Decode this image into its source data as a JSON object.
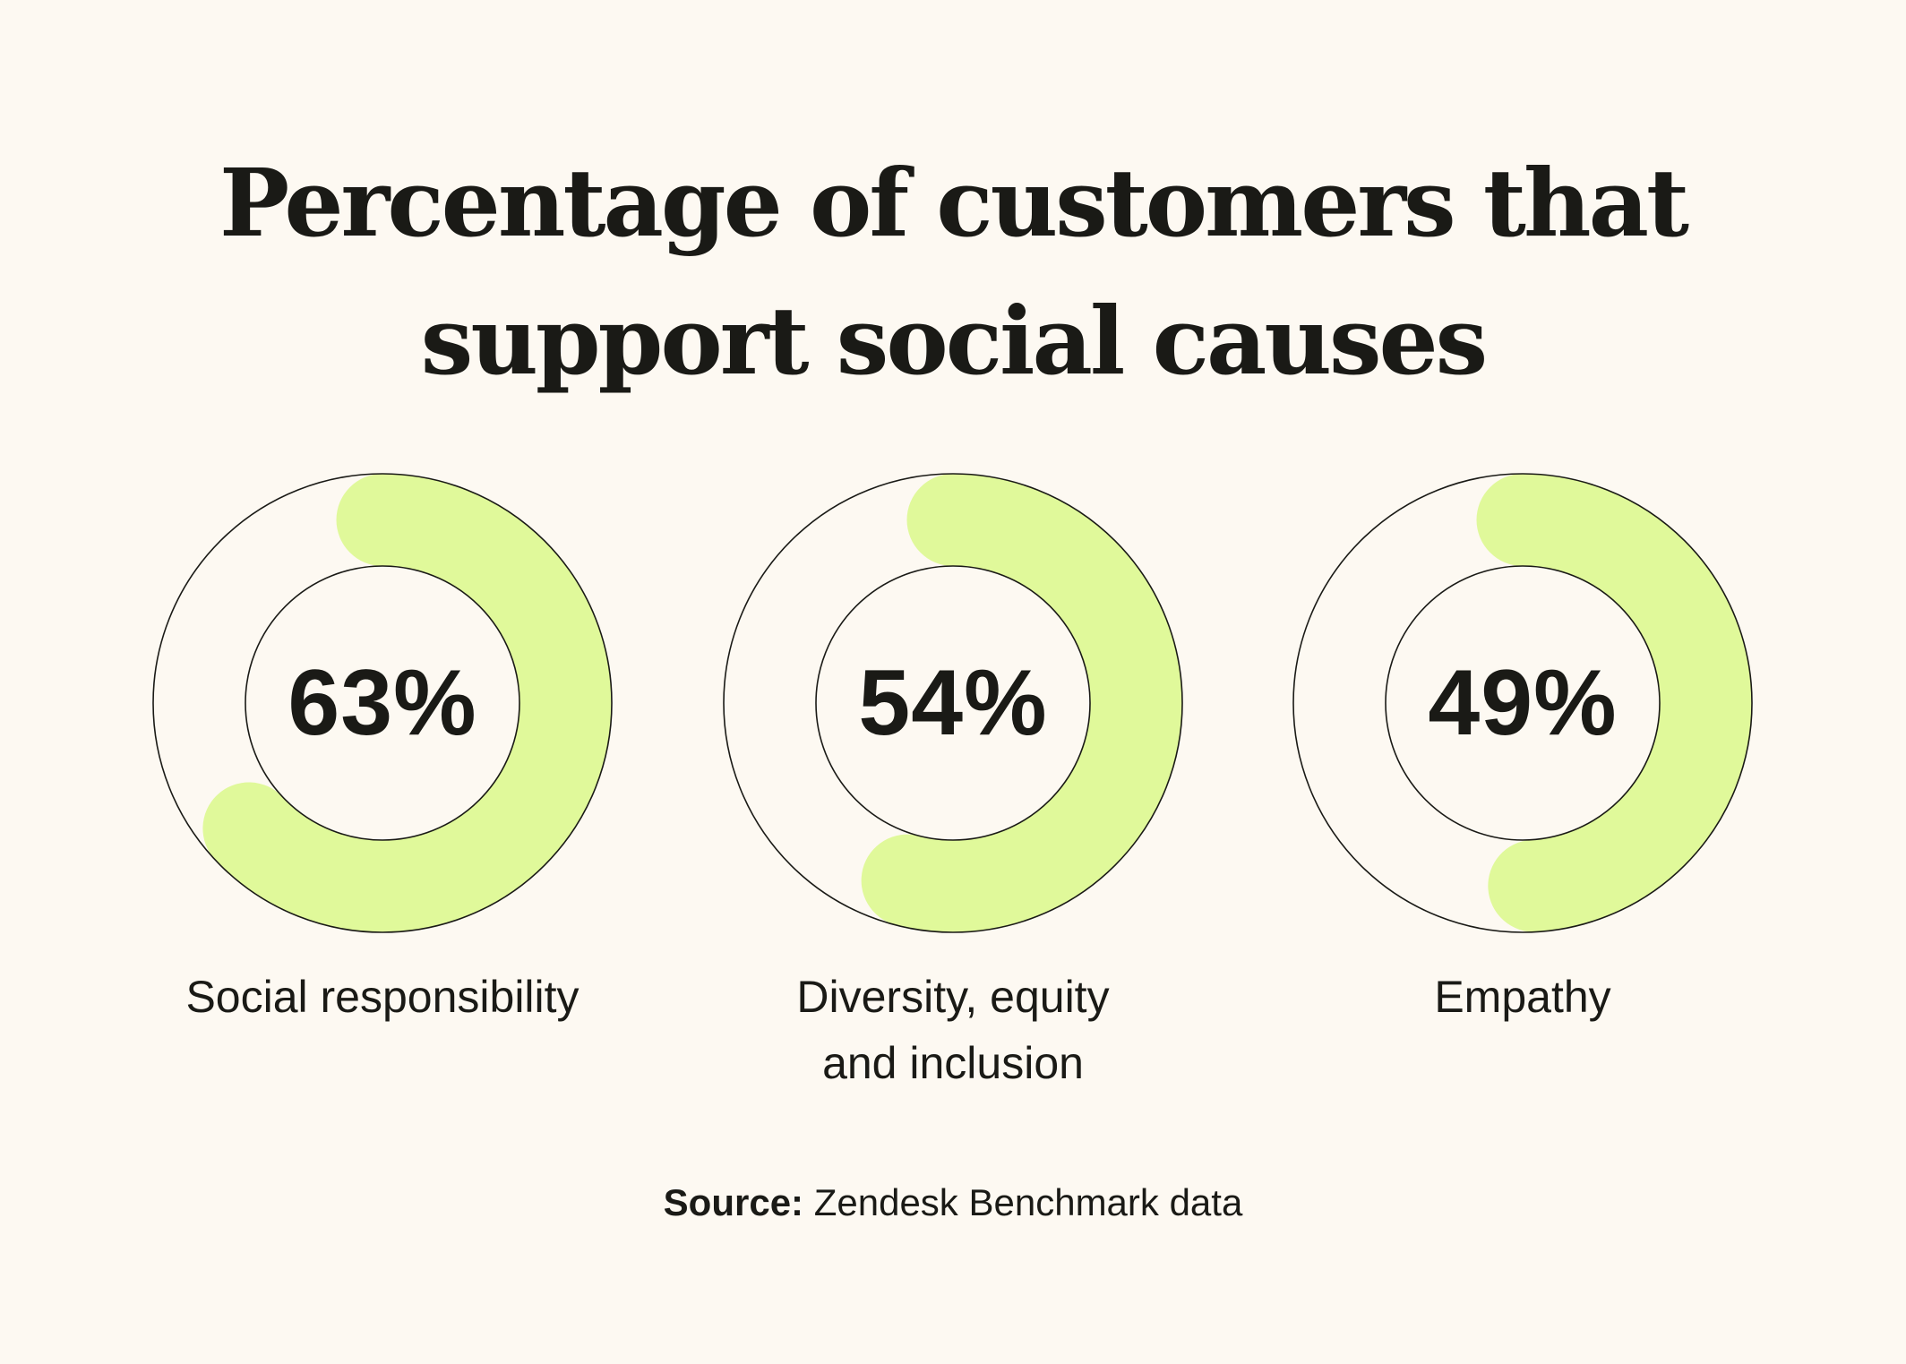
{
  "title": {
    "line1": "Percentage of customers that",
    "line2": "support social causes"
  },
  "colors": {
    "background": "#fdf9f2",
    "fill": "#e0f99a",
    "stroke": "#1a1a16",
    "text": "#1a1a16"
  },
  "chart_data": {
    "type": "pie",
    "title": "Percentage of customers that support social causes",
    "unit": "%",
    "categories": [
      "Social responsibility",
      "Diversity, equity and inclusion",
      "Empathy"
    ],
    "values": [
      63,
      54,
      49
    ],
    "items": [
      {
        "value": 63,
        "value_label": "63%",
        "label_lines": [
          "Social responsibility"
        ]
      },
      {
        "value": 54,
        "value_label": "54%",
        "label_lines": [
          "Diversity, equity",
          "and inclusion"
        ]
      },
      {
        "value": 49,
        "value_label": "49%",
        "label_lines": [
          "Empathy"
        ]
      }
    ]
  },
  "source": {
    "prefix": "Source:",
    "text": " Zendesk Benchmark data"
  }
}
